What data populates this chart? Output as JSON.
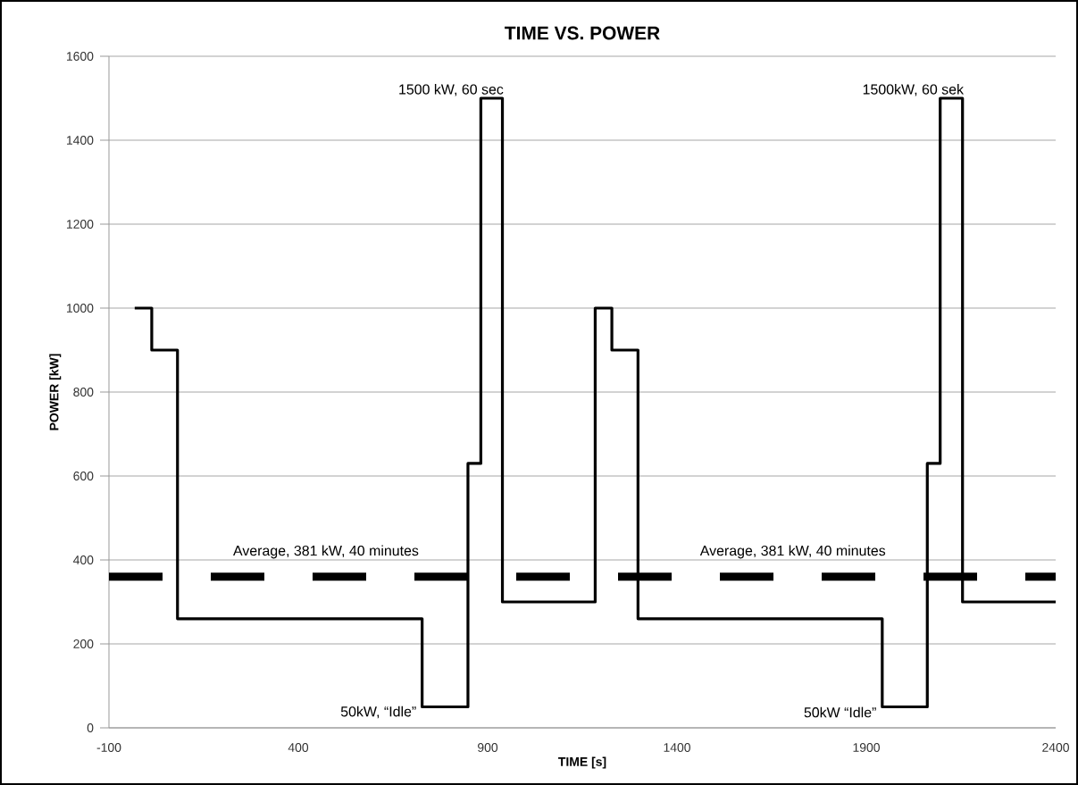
{
  "chart_data": {
    "type": "step",
    "title": "TIME VS. POWER",
    "xlabel": "TIME [s]",
    "ylabel": "POWER [kW]",
    "x": [
      -32,
      13,
      81,
      727,
      848,
      882,
      939,
      1184,
      1228,
      1297,
      1942,
      2061,
      2095,
      2154,
      2400
    ],
    "series": [
      {
        "color": "#000000",
        "values": [
          1000,
          900,
          260,
          50,
          630,
          1500,
          300,
          1000,
          900,
          260,
          50,
          630,
          1500,
          300,
          300
        ]
      }
    ],
    "xlim": [
      -100,
      2400
    ],
    "xticks": [
      -100,
      400,
      900,
      1400,
      1900,
      2400
    ],
    "ylim": [
      0,
      1600
    ],
    "yticks": [
      0,
      200,
      400,
      600,
      800,
      1000,
      1200,
      1400,
      1600
    ],
    "grid": "y",
    "ref_lines": [
      {
        "axis": "y",
        "value": 360,
        "color": "#000000",
        "line_style": "dashed"
      }
    ],
    "annotations": [
      {
        "text": "1500 kW, 60 sec",
        "x": 910,
        "y": 1500
      },
      {
        "text": "1500kW, 60 sek",
        "x": 2125,
        "y": 1500
      },
      {
        "text": "50kW, “Idle”",
        "x": 727,
        "y": 50
      },
      {
        "text": "50kW “Idle”",
        "x": 1942,
        "y": 50
      },
      {
        "text": "Average, 381 kW, 40 minutes",
        "x": 473,
        "y": 360
      },
      {
        "text": "Average, 381 kW, 40 minutes",
        "x": 1706,
        "y": 360
      }
    ]
  }
}
